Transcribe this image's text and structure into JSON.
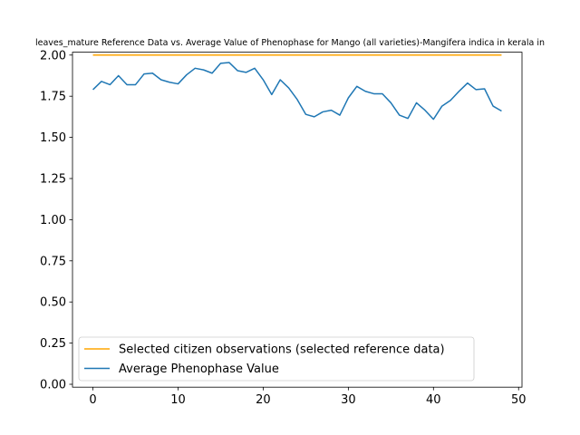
{
  "chart_data": {
    "type": "line",
    "title": "leaves_mature Reference Data vs. Average Value of Phenophase for Mango (all varieties)-Mangifera indica in kerala in",
    "xlabel": "",
    "ylabel": "",
    "xlim": [
      -2.4,
      50.4
    ],
    "ylim": [
      -0.0,
      2.0
    ],
    "xticks": [
      0,
      10,
      20,
      30,
      40,
      50
    ],
    "yticks": [
      0.0,
      0.25,
      0.5,
      0.75,
      1.0,
      1.25,
      1.5,
      1.75,
      2.0
    ],
    "xtick_labels": [
      "0",
      "10",
      "20",
      "30",
      "40",
      "50"
    ],
    "ytick_labels": [
      "0.00",
      "0.25",
      "0.50",
      "0.75",
      "1.00",
      "1.25",
      "1.50",
      "1.75",
      "2.00"
    ],
    "grid": false,
    "legend_position": "lower-left",
    "x": [
      0,
      1,
      2,
      3,
      4,
      5,
      6,
      7,
      8,
      9,
      10,
      11,
      12,
      13,
      14,
      15,
      16,
      17,
      18,
      19,
      20,
      21,
      22,
      23,
      24,
      25,
      26,
      27,
      28,
      29,
      30,
      31,
      32,
      33,
      34,
      35,
      36,
      37,
      38,
      39,
      40,
      41,
      42,
      43,
      44,
      45,
      46,
      47,
      48
    ],
    "series": [
      {
        "name": "Selected citizen observations (selected reference data)",
        "color": "#ffa500",
        "values": [
          2,
          2,
          2,
          2,
          2,
          2,
          2,
          2,
          2,
          2,
          2,
          2,
          2,
          2,
          2,
          2,
          2,
          2,
          2,
          2,
          2,
          2,
          2,
          2,
          2,
          2,
          2,
          2,
          2,
          2,
          2,
          2,
          2,
          2,
          2,
          2,
          2,
          2,
          2,
          2,
          2,
          2,
          2,
          2,
          2,
          2,
          2,
          2,
          2
        ]
      },
      {
        "name": "Average Phenophase Value",
        "color": "#1f77b4",
        "values": [
          1.79,
          1.84,
          1.82,
          1.875,
          1.82,
          1.82,
          1.885,
          1.89,
          1.85,
          1.835,
          1.825,
          1.88,
          1.92,
          1.91,
          1.89,
          1.95,
          1.955,
          1.905,
          1.895,
          1.92,
          1.85,
          1.76,
          1.85,
          1.8,
          1.73,
          1.64,
          1.625,
          1.655,
          1.665,
          1.635,
          1.74,
          1.81,
          1.78,
          1.765,
          1.765,
          1.71,
          1.635,
          1.615,
          1.71,
          1.665,
          1.61,
          1.69,
          1.725,
          1.78,
          1.83,
          1.79,
          1.795,
          1.69,
          1.66
        ]
      }
    ]
  }
}
